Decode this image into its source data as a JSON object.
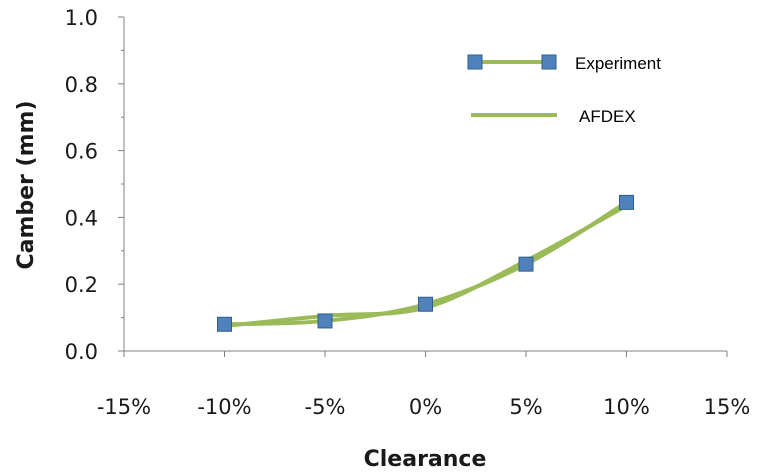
{
  "chart_data": {
    "type": "line",
    "title": "",
    "xlabel": "Clearance",
    "ylabel": "Camber (mm)",
    "xlim": [
      -15,
      15
    ],
    "ylim": [
      0,
      1.0
    ],
    "x_ticks": [
      -15,
      -10,
      -5,
      0,
      5,
      10,
      15
    ],
    "x_tick_labels": [
      "-15%",
      "-10%",
      "-5%",
      "0%",
      "5%",
      "10%",
      "15%"
    ],
    "y_ticks": [
      0,
      0.2,
      0.4,
      0.6,
      0.8,
      1.0
    ],
    "y_tick_labels": [
      "0.0",
      "0.2",
      "0.4",
      "0.6",
      "0.8",
      "1.0"
    ],
    "grid": false,
    "legend_position": "top-right",
    "series": [
      {
        "name": "Experiment",
        "x": [
          -10,
          -5,
          0,
          5,
          10
        ],
        "y": [
          0.08,
          0.09,
          0.14,
          0.26,
          0.445
        ],
        "marker": "square",
        "marker_color": "#4F81BD",
        "line_color": "#9BBB59"
      },
      {
        "name": "AFDEX",
        "x": [
          -10,
          -5,
          0,
          5,
          10
        ],
        "y": [
          0.075,
          0.105,
          0.13,
          0.27,
          0.435
        ],
        "marker": "none",
        "line_color": "#9BBB59"
      }
    ]
  }
}
